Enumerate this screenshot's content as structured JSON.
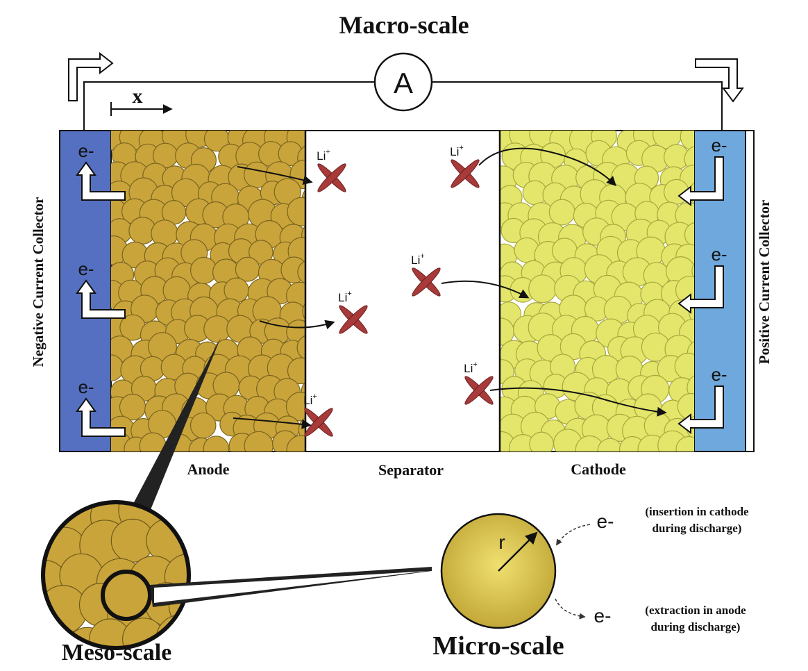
{
  "title": "Macro-scale",
  "ammeter_label": "A",
  "axis_label": "x",
  "regions": {
    "anode": "Anode",
    "separator": "Separator",
    "cathode": "Cathode"
  },
  "collectors": {
    "negative": "Negative Current Collector",
    "positive": "Positive Current Collector"
  },
  "electron_label": "e-",
  "ion_label": "Li",
  "ion_charge": "+",
  "meso_label": "Meso-scale",
  "micro_label": "Micro-scale",
  "radius_label": "r",
  "annotations": {
    "insertion_line1": "(insertion in cathode",
    "insertion_line2": "during discharge)",
    "extraction_line1": "(extraction in anode",
    "extraction_line2": "during discharge)"
  },
  "colors": {
    "negative_collector": "#5570c0",
    "positive_collector": "#6fa8dc",
    "anode_particle": "#c9a43a",
    "cathode_particle": "#e3e66a",
    "ion": "#a83a3a"
  }
}
